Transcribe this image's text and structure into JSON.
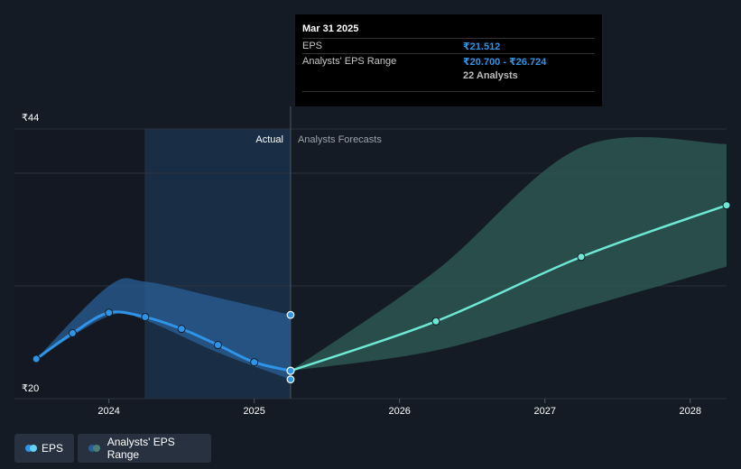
{
  "tooltip": {
    "date": "Mar 31 2025",
    "eps_label": "EPS",
    "eps_value": "₹21.512",
    "range_label": "Analysts' EPS Range",
    "range_value": "₹20.700 - ₹26.724",
    "analysts": "22 Analysts"
  },
  "legend": {
    "eps_label": "EPS",
    "range_label": "Analysts' EPS Range"
  },
  "colors": {
    "background": "#151b24",
    "eps_line": "#2e94e8",
    "forecast_line": "#6ee8d4",
    "past_band": "#2a5f95",
    "forecast_band": "#2d5a55",
    "actual_highlight": "#1b3450"
  },
  "chart_data": {
    "type": "line",
    "y_ticks": [
      {
        "value": 20,
        "label": "₹20"
      },
      {
        "value": 44,
        "label": "₹44"
      }
    ],
    "ylim": [
      20,
      44
    ],
    "x_ticks": [
      {
        "value": 2024,
        "label": "2024"
      },
      {
        "value": 2025,
        "label": "2025"
      },
      {
        "value": 2026,
        "label": "2026"
      },
      {
        "value": 2027,
        "label": "2027"
      },
      {
        "value": 2028,
        "label": "2028"
      }
    ],
    "xlim": [
      2023.35,
      2028.25
    ],
    "actual_label": "Actual",
    "forecast_label": "Analysts Forecasts",
    "divider_x": 2025.25,
    "highlight_start_x": 2024.25,
    "series": [
      {
        "name": "EPS",
        "points": [
          {
            "x": 2023.5,
            "y": 22.6
          },
          {
            "x": 2023.75,
            "y": 25.0
          },
          {
            "x": 2024.0,
            "y": 26.9
          },
          {
            "x": 2024.25,
            "y": 26.5
          },
          {
            "x": 2024.5,
            "y": 25.4
          },
          {
            "x": 2024.75,
            "y": 23.9
          },
          {
            "x": 2025.0,
            "y": 22.3
          },
          {
            "x": 2025.25,
            "y": 21.5
          }
        ]
      },
      {
        "name": "EPS forecast",
        "points": [
          {
            "x": 2025.25,
            "y": 21.5
          },
          {
            "x": 2026.25,
            "y": 26.1
          },
          {
            "x": 2027.25,
            "y": 32.1
          },
          {
            "x": 2028.25,
            "y": 36.9
          }
        ]
      }
    ],
    "range_past": [
      {
        "x": 2023.5,
        "low": 22.6,
        "high": 22.6
      },
      {
        "x": 2024.0,
        "low": 26.6,
        "high": 29.4
      },
      {
        "x": 2024.25,
        "low": 26.2,
        "high": 29.8
      },
      {
        "x": 2024.75,
        "low": 23.2,
        "high": 28.3
      },
      {
        "x": 2025.25,
        "low": 20.7,
        "high": 26.7
      }
    ],
    "range_forecast": [
      {
        "x": 2025.25,
        "low": 21.5,
        "high": 21.5
      },
      {
        "x": 2026.25,
        "low": 23.4,
        "high": 30.8
      },
      {
        "x": 2027.25,
        "low": 27.3,
        "high": 42.3
      },
      {
        "x": 2028.25,
        "low": 31.2,
        "high": 42.6
      }
    ],
    "range_markers": [
      {
        "x": 2025.25,
        "y": 26.7
      },
      {
        "x": 2025.25,
        "y": 20.7
      }
    ]
  }
}
